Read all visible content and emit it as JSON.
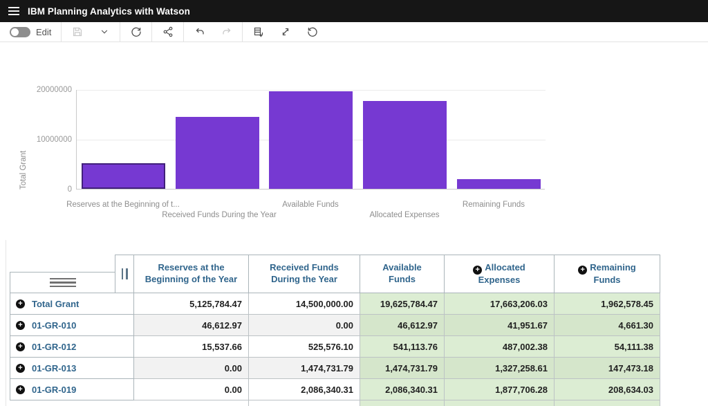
{
  "app": {
    "title": "IBM Planning Analytics with Watson"
  },
  "toolbar": {
    "edit_label": "Edit",
    "edit_toggle_state": "off",
    "icons": [
      "save-icon",
      "chevron-down-icon",
      "refresh-icon",
      "share-icon",
      "undo-icon",
      "redo-icon",
      "export-data-icon",
      "maximize-icon",
      "reset-icon"
    ]
  },
  "colors": {
    "bar_purple": "#7639d2",
    "bar_selected_border": "#41207a",
    "table_green": "#dcedd3",
    "header_blue": "#30658c",
    "topbar_black": "#161616"
  },
  "chart_data": {
    "type": "bar",
    "title": "",
    "categories": [
      "Reserves at the Beginning of the Year",
      "Received Funds During the Year",
      "Available Funds",
      "Allocated Expenses",
      "Remaining Funds"
    ],
    "xtick_labels": [
      "Reserves at the Beginning of t...",
      "Received Funds During the Year",
      "Available Funds",
      "Allocated Expenses",
      "Remaining Funds"
    ],
    "values": [
      5125784.47,
      14500000.0,
      19625784.47,
      17663206.03,
      1962578.45
    ],
    "xlabel": "",
    "ylabel": "Total Grant",
    "yticks": [
      "20000000",
      "10000000",
      "0"
    ],
    "ylim": [
      0,
      20000000
    ],
    "grid": "horizontal",
    "legend": "none",
    "selected_bar_index": 0
  },
  "table": {
    "columns": [
      {
        "label": "Reserves at the Beginning of the Year",
        "expandable": false
      },
      {
        "label": "Received Funds During the Year",
        "expandable": false
      },
      {
        "label": "Available Funds",
        "expandable": false
      },
      {
        "label": "Allocated Expenses",
        "expandable": true
      },
      {
        "label": "Remaining Funds",
        "expandable": true
      }
    ],
    "expand_icon": "+",
    "rows": [
      {
        "name": "Total Grant",
        "values": [
          "5,125,784.47",
          "14,500,000.00",
          "19,625,784.47",
          "17,663,206.03",
          "1,962,578.45"
        ]
      },
      {
        "name": "01-GR-010",
        "values": [
          "46,612.97",
          "0.00",
          "46,612.97",
          "41,951.67",
          "4,661.30"
        ]
      },
      {
        "name": "01-GR-012",
        "values": [
          "15,537.66",
          "525,576.10",
          "541,113.76",
          "487,002.38",
          "54,111.38"
        ]
      },
      {
        "name": "01-GR-013",
        "values": [
          "0.00",
          "1,474,731.79",
          "1,474,731.79",
          "1,327,258.61",
          "147,473.18"
        ]
      },
      {
        "name": "01-GR-019",
        "values": [
          "0.00",
          "2,086,340.31",
          "2,086,340.31",
          "1,877,706.28",
          "208,634.03"
        ]
      }
    ]
  }
}
